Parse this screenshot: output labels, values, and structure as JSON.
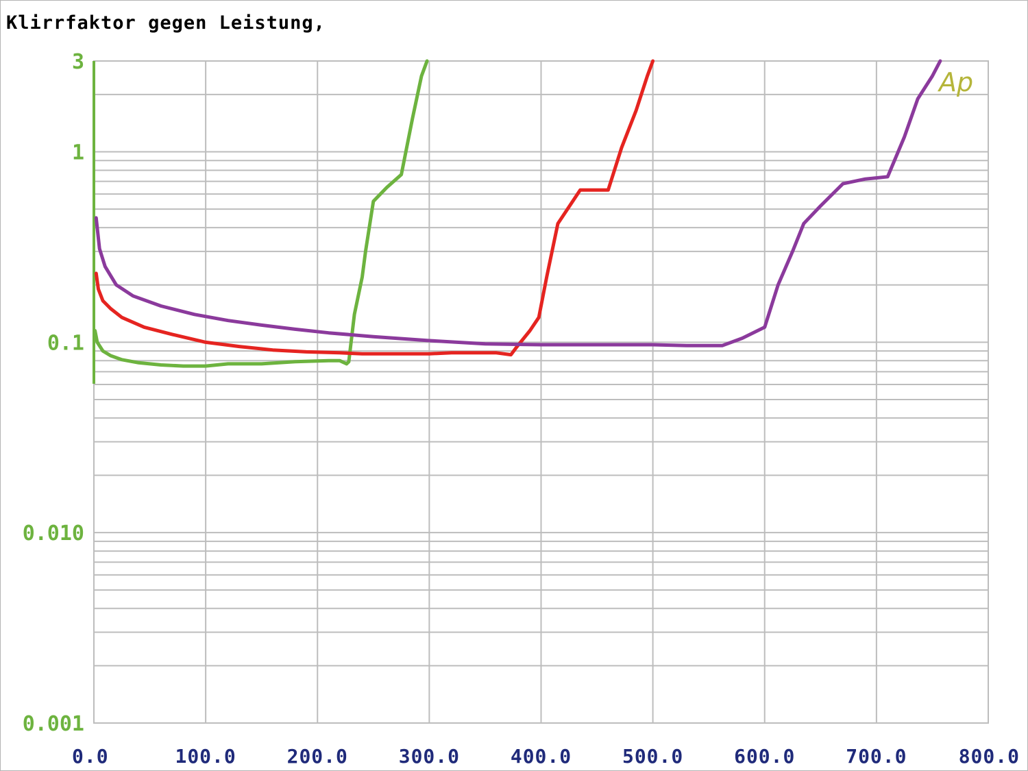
{
  "chart_data": {
    "type": "line",
    "title": "Klirrfaktor gegen Leistung,",
    "logo": "Ap",
    "xlabel": "",
    "ylabel": "",
    "xlim": [
      0,
      800
    ],
    "ylim": [
      0.001,
      3
    ],
    "y_scale": "log",
    "grid": true,
    "x_ticks": [
      {
        "value": 0,
        "label": "0.0"
      },
      {
        "value": 100,
        "label": "100.0"
      },
      {
        "value": 200,
        "label": "200.0"
      },
      {
        "value": 300,
        "label": "300.0"
      },
      {
        "value": 400,
        "label": "400.0"
      },
      {
        "value": 500,
        "label": "500.0"
      },
      {
        "value": 600,
        "label": "600.0"
      },
      {
        "value": 700,
        "label": "700.0"
      },
      {
        "value": 800,
        "label": "800.0"
      }
    ],
    "y_ticks": [
      {
        "value": 3,
        "label": "3"
      },
      {
        "value": 1,
        "label": "1"
      },
      {
        "value": 0.1,
        "label": "0.1"
      },
      {
        "value": 0.01,
        "label": "0.010"
      },
      {
        "value": 0.001,
        "label": "0.001"
      }
    ],
    "colors": {
      "grid": "#bdbdbd",
      "axis_tick_y": "#6db33f",
      "axis_tick_x": "#1f2a7a",
      "logo": "#b5b53a"
    },
    "series": [
      {
        "color": "#6db33f",
        "points": [
          [
            1,
            0.115
          ],
          [
            3,
            0.1
          ],
          [
            8,
            0.09
          ],
          [
            15,
            0.085
          ],
          [
            25,
            0.081
          ],
          [
            40,
            0.078
          ],
          [
            60,
            0.076
          ],
          [
            80,
            0.075
          ],
          [
            100,
            0.075
          ],
          [
            120,
            0.077
          ],
          [
            150,
            0.077
          ],
          [
            180,
            0.079
          ],
          [
            210,
            0.08
          ],
          [
            220,
            0.08
          ],
          [
            226,
            0.077
          ],
          [
            228,
            0.079
          ],
          [
            233,
            0.14
          ],
          [
            240,
            0.22
          ],
          [
            243,
            0.3
          ],
          [
            250,
            0.55
          ],
          [
            262,
            0.65
          ],
          [
            275,
            0.76
          ],
          [
            285,
            1.5
          ],
          [
            293,
            2.5
          ],
          [
            298,
            3.0
          ]
        ]
      },
      {
        "color": "#e52420",
        "points": [
          [
            2,
            0.23
          ],
          [
            4,
            0.19
          ],
          [
            8,
            0.165
          ],
          [
            15,
            0.15
          ],
          [
            25,
            0.135
          ],
          [
            45,
            0.12
          ],
          [
            70,
            0.11
          ],
          [
            100,
            0.1
          ],
          [
            130,
            0.095
          ],
          [
            160,
            0.091
          ],
          [
            190,
            0.089
          ],
          [
            220,
            0.088
          ],
          [
            240,
            0.087
          ],
          [
            270,
            0.087
          ],
          [
            300,
            0.087
          ],
          [
            320,
            0.088
          ],
          [
            340,
            0.088
          ],
          [
            360,
            0.088
          ],
          [
            373,
            0.086
          ],
          [
            378,
            0.094
          ],
          [
            390,
            0.115
          ],
          [
            398,
            0.135
          ],
          [
            405,
            0.22
          ],
          [
            415,
            0.42
          ],
          [
            435,
            0.63
          ],
          [
            460,
            0.63
          ],
          [
            472,
            1.05
          ],
          [
            485,
            1.65
          ],
          [
            495,
            2.5
          ],
          [
            500,
            3.0
          ]
        ]
      },
      {
        "color": "#8b3a9c",
        "points": [
          [
            2,
            0.45
          ],
          [
            5,
            0.31
          ],
          [
            10,
            0.25
          ],
          [
            20,
            0.2
          ],
          [
            35,
            0.175
          ],
          [
            60,
            0.155
          ],
          [
            90,
            0.14
          ],
          [
            120,
            0.13
          ],
          [
            150,
            0.123
          ],
          [
            180,
            0.117
          ],
          [
            210,
            0.112
          ],
          [
            250,
            0.107
          ],
          [
            300,
            0.102
          ],
          [
            350,
            0.098
          ],
          [
            400,
            0.097
          ],
          [
            450,
            0.097
          ],
          [
            500,
            0.097
          ],
          [
            530,
            0.096
          ],
          [
            562,
            0.096
          ],
          [
            580,
            0.105
          ],
          [
            600,
            0.12
          ],
          [
            612,
            0.2
          ],
          [
            625,
            0.3
          ],
          [
            635,
            0.42
          ],
          [
            650,
            0.52
          ],
          [
            670,
            0.68
          ],
          [
            690,
            0.72
          ],
          [
            710,
            0.74
          ],
          [
            725,
            1.2
          ],
          [
            737,
            1.9
          ],
          [
            750,
            2.5
          ],
          [
            757,
            3.0
          ]
        ]
      }
    ]
  }
}
